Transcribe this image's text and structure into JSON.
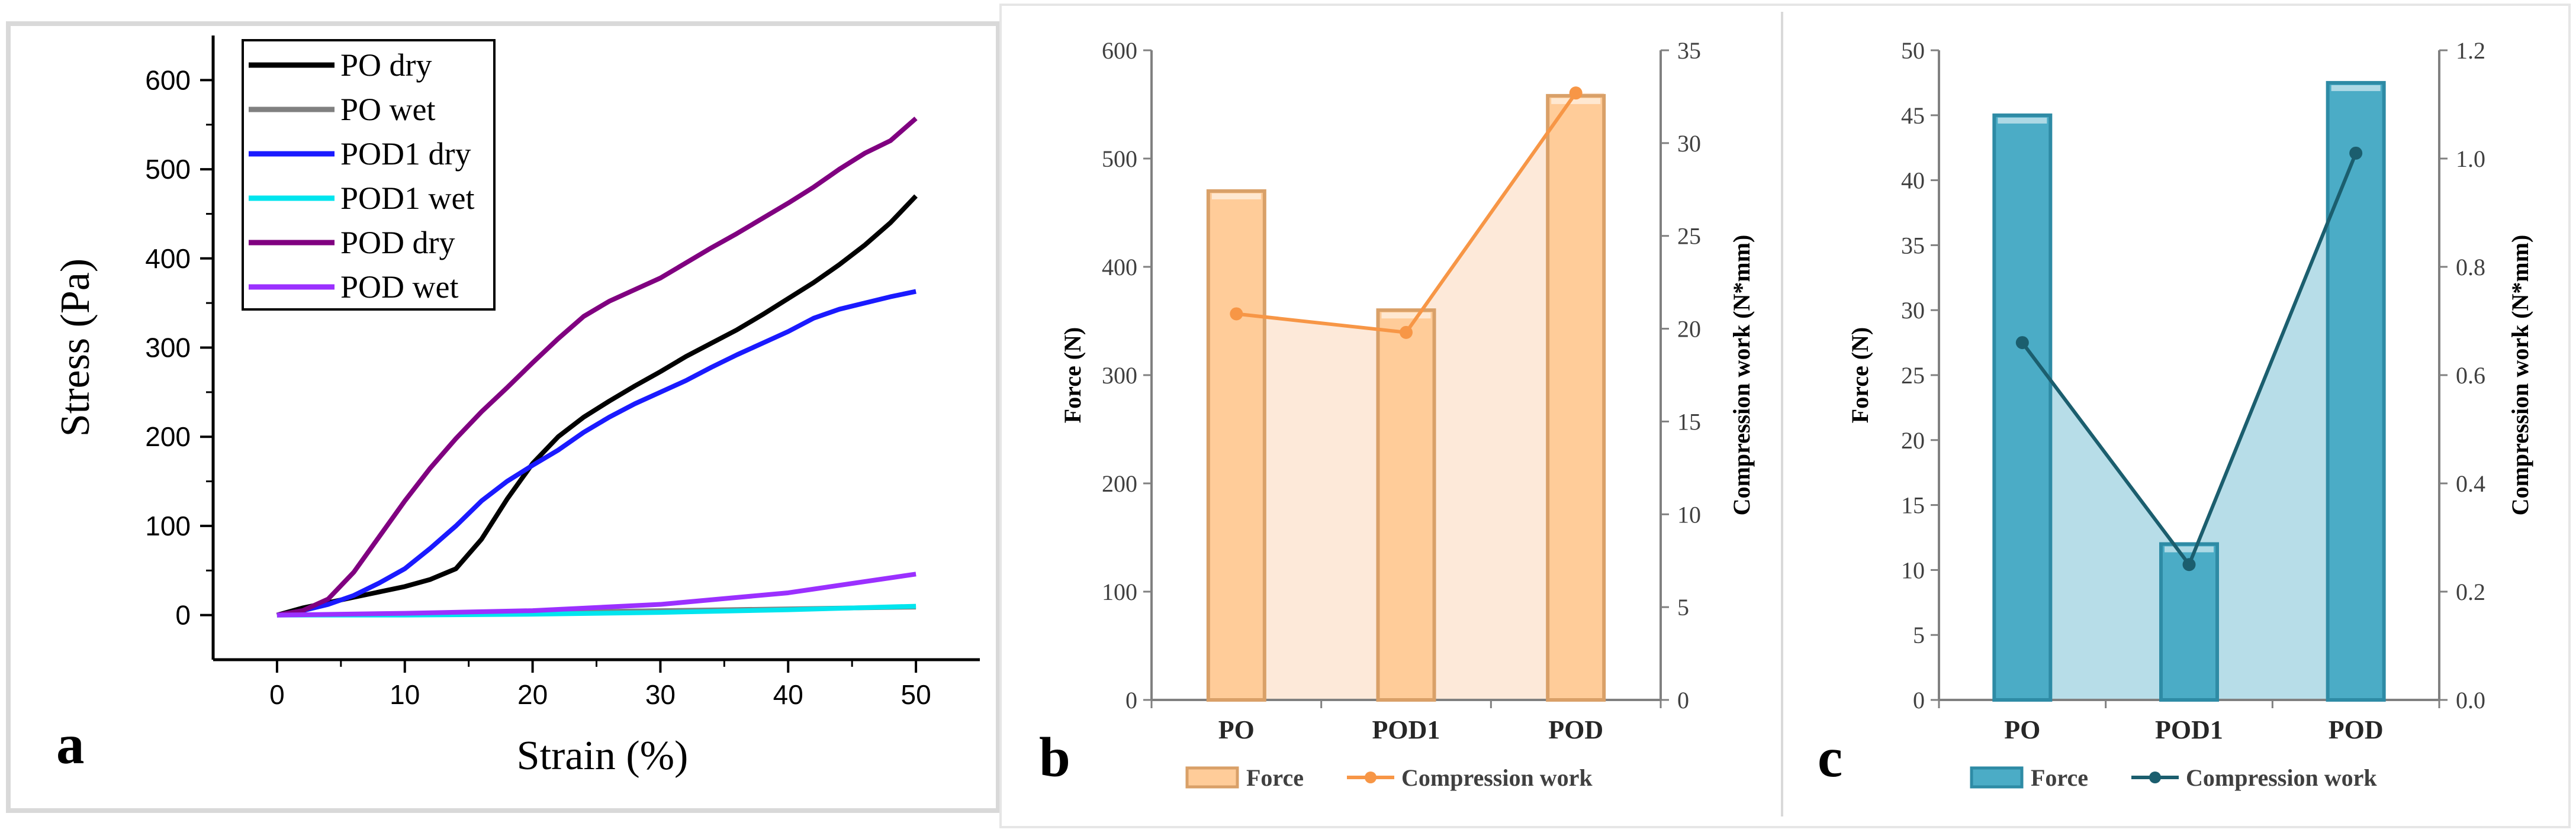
{
  "chart_data": [
    {
      "panel_label": "a",
      "type": "line",
      "xlabel": "Strain (%)",
      "ylabel": "Stress (Pa)",
      "xlim": [
        -5,
        55
      ],
      "ylim": [
        -50,
        650
      ],
      "x_ticks": [
        "0",
        "10",
        "20",
        "30",
        "40",
        "50"
      ],
      "y_ticks": [
        "0",
        "100",
        "200",
        "300",
        "400",
        "500",
        "600"
      ],
      "legend_position": "top-left",
      "series": [
        {
          "name": "PO dry",
          "color": "#000000",
          "x": [
            0,
            2,
            4,
            6,
            8,
            10,
            12,
            14,
            16,
            18,
            20,
            22,
            24,
            26,
            28,
            30,
            32,
            34,
            36,
            38,
            40,
            42,
            44,
            46,
            48,
            50
          ],
          "y": [
            0,
            8,
            14,
            20,
            26,
            32,
            40,
            52,
            85,
            130,
            170,
            200,
            222,
            240,
            257,
            273,
            290,
            305,
            320,
            337,
            355,
            373,
            393,
            415,
            440,
            470
          ]
        },
        {
          "name": "PO wet",
          "color": "#808080",
          "x": [
            0,
            10,
            20,
            30,
            40,
            50
          ],
          "y": [
            0,
            1,
            3,
            5,
            7,
            9
          ]
        },
        {
          "name": "POD1 dry",
          "color": "#1a1aff",
          "x": [
            0,
            2,
            4,
            6,
            8,
            10,
            12,
            14,
            16,
            18,
            20,
            22,
            24,
            26,
            28,
            30,
            32,
            34,
            36,
            38,
            40,
            42,
            44,
            46,
            48,
            50
          ],
          "y": [
            0,
            5,
            12,
            22,
            36,
            52,
            75,
            100,
            128,
            150,
            168,
            185,
            205,
            222,
            237,
            250,
            263,
            278,
            292,
            305,
            318,
            333,
            343,
            350,
            357,
            363
          ]
        },
        {
          "name": "POD1 wet",
          "color": "#00e5ee",
          "x": [
            0,
            10,
            20,
            30,
            40,
            50
          ],
          "y": [
            0,
            0,
            1,
            3,
            6,
            10
          ]
        },
        {
          "name": "POD dry",
          "color": "#800080",
          "x": [
            0,
            2,
            4,
            6,
            8,
            10,
            12,
            14,
            16,
            18,
            20,
            22,
            24,
            26,
            28,
            30,
            32,
            34,
            36,
            38,
            40,
            42,
            44,
            46,
            48,
            50
          ],
          "y": [
            0,
            5,
            18,
            48,
            88,
            128,
            165,
            198,
            228,
            255,
            283,
            310,
            335,
            352,
            365,
            378,
            395,
            412,
            428,
            445,
            462,
            480,
            500,
            518,
            532,
            557
          ]
        },
        {
          "name": "POD wet",
          "color": "#9b30ff",
          "x": [
            0,
            10,
            20,
            30,
            40,
            50
          ],
          "y": [
            0,
            2,
            5,
            12,
            25,
            46
          ]
        }
      ]
    },
    {
      "panel_label": "b",
      "type": "bar",
      "categories": [
        "PO",
        "POD1",
        "POD"
      ],
      "series": [
        {
          "name": "Force",
          "axis": "left",
          "type": "bar",
          "values": [
            470,
            360,
            558
          ]
        },
        {
          "name": "Compression work",
          "axis": "right",
          "type": "line",
          "values": [
            20.8,
            19.8,
            32.7
          ]
        }
      ],
      "ylabel": "Force (N)",
      "y2label": "Compression work (N*mm)",
      "ylim": [
        0,
        600
      ],
      "y2lim": [
        0,
        35
      ],
      "y_ticks": [
        "0",
        "100",
        "200",
        "300",
        "400",
        "500",
        "600"
      ],
      "y2_ticks": [
        "0",
        "5",
        "10",
        "15",
        "20",
        "25",
        "30",
        "35"
      ],
      "legend_position": "bottom"
    },
    {
      "panel_label": "c",
      "type": "bar",
      "categories": [
        "PO",
        "POD1",
        "POD"
      ],
      "series": [
        {
          "name": "Force",
          "axis": "left",
          "type": "bar",
          "values": [
            45,
            12,
            47.5
          ]
        },
        {
          "name": "Compression work",
          "axis": "right",
          "type": "line",
          "values": [
            0.66,
            0.25,
            1.01
          ]
        }
      ],
      "ylabel": "Force (N)",
      "y2label": "Compression work (N*mm)",
      "ylim": [
        0,
        50
      ],
      "y2lim": [
        0,
        1.2
      ],
      "y_ticks": [
        "0",
        "5",
        "10",
        "15",
        "20",
        "25",
        "30",
        "35",
        "40",
        "45",
        "50"
      ],
      "y2_ticks": [
        "0.0",
        "0.2",
        "0.4",
        "0.6",
        "0.8",
        "1.0",
        "1.2"
      ],
      "legend_position": "bottom"
    }
  ],
  "colors": {
    "b_bar": "#ffcc99",
    "b_bar_edge": "#d9a068",
    "b_area": "#fde9d9",
    "b_line": "#f79646",
    "c_bar": "#4bacc6",
    "c_bar_edge": "#2e8ba5",
    "c_area": "#b7dde8",
    "c_line": "#1b5e6e"
  }
}
